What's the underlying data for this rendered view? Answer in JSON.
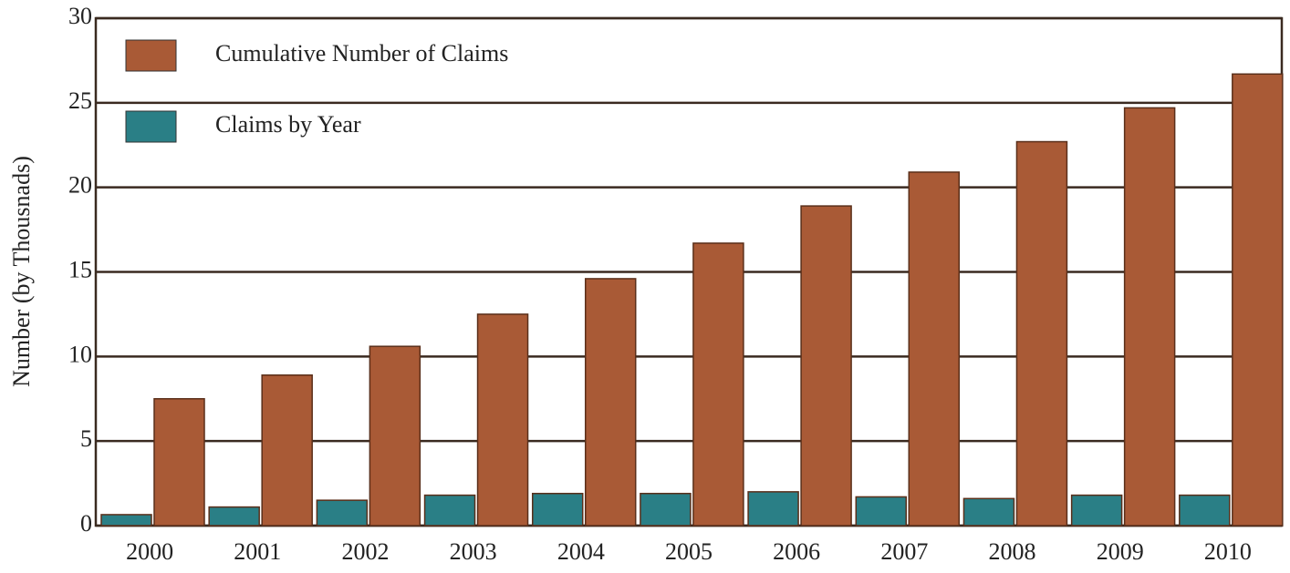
{
  "chart_data": {
    "type": "bar",
    "ylabel": "Number (by Thousnads)",
    "categories": [
      "2000",
      "2001",
      "2002",
      "2003",
      "2004",
      "2005",
      "2006",
      "2007",
      "2008",
      "2009",
      "2010"
    ],
    "series": [
      {
        "name": "Claims by Year",
        "color": "#2a7f86",
        "values": [
          0.65,
          1.1,
          1.5,
          1.8,
          1.9,
          1.9,
          2.0,
          1.7,
          1.6,
          1.8,
          1.8
        ]
      },
      {
        "name": "Cumulative Number of Claims",
        "color": "#a95a36",
        "values": [
          7.5,
          8.9,
          10.6,
          12.5,
          14.6,
          16.7,
          18.9,
          20.9,
          22.7,
          24.7,
          26.7
        ]
      }
    ],
    "ylim": [
      0,
      30
    ],
    "yticks": [
      0,
      5,
      10,
      15,
      20,
      25,
      30
    ],
    "grid": true
  }
}
